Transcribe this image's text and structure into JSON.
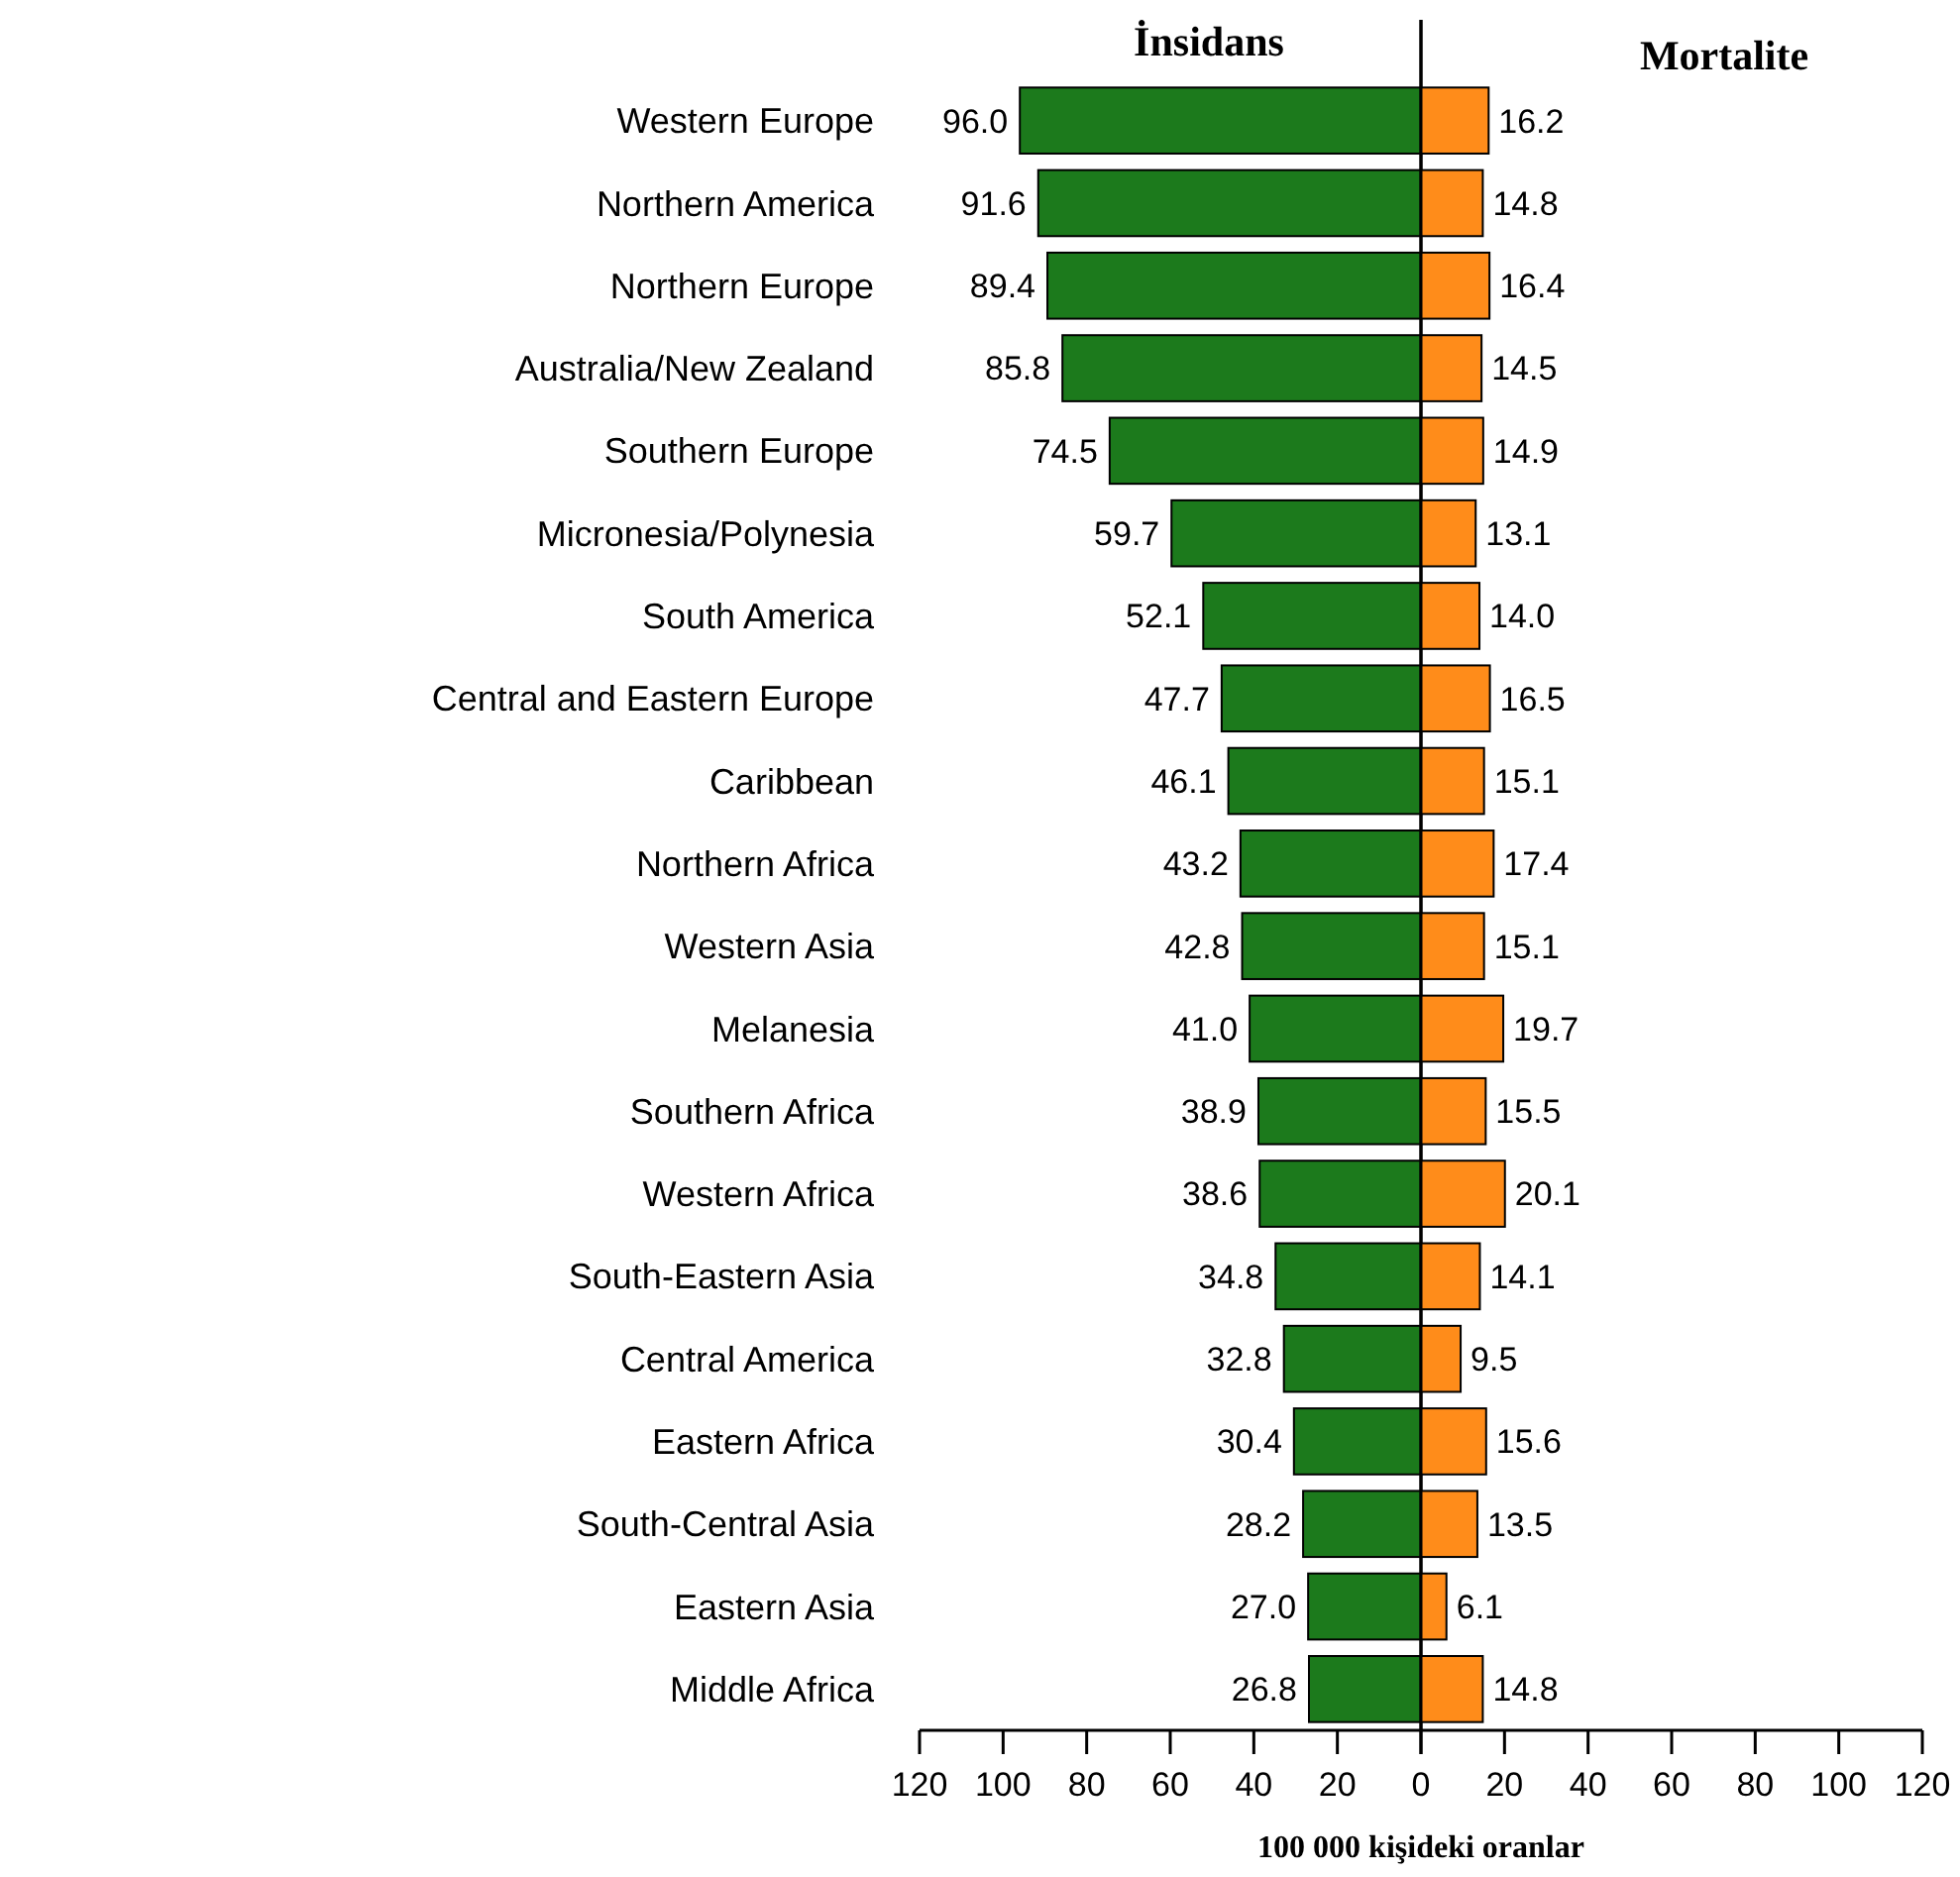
{
  "chart_data": [
    {
      "type": "bar",
      "orientation": "horizontal",
      "title": "İnsidans",
      "xlabel": "100 000 kişideki oranlar",
      "categories": [
        "Western Europe",
        "Northern America",
        "Northern Europe",
        "Australia/New Zealand",
        "Southern Europe",
        "Micronesia/Polynesia",
        "South America",
        "Central and Eastern Europe",
        "Caribbean",
        "Northern Africa",
        "Western Asia",
        "Melanesia",
        "Southern Africa",
        "Western Africa",
        "South-Eastern Asia",
        "Central America",
        "Eastern Africa",
        "South-Central Asia",
        "Eastern Asia",
        "Middle Africa"
      ],
      "color": "#1c7a1c",
      "values": [
        96.0,
        91.6,
        89.4,
        85.8,
        74.5,
        59.7,
        52.1,
        47.7,
        46.1,
        43.2,
        42.8,
        41.0,
        38.9,
        38.6,
        34.8,
        32.8,
        30.4,
        28.2,
        27.0,
        26.8
      ],
      "value_labels": [
        "96.0",
        "91.6",
        "89.4",
        "85.8",
        "74.5",
        "59.7",
        "52.1",
        "47.7",
        "46.1",
        "43.2",
        "42.8",
        "41.0",
        "38.9",
        "38.6",
        "34.8",
        "32.8",
        "30.4",
        "28.2",
        "27.0",
        "26.8"
      ],
      "xlim": [
        120,
        0
      ],
      "xticks": [
        120,
        100,
        80,
        60,
        40,
        20,
        0
      ]
    },
    {
      "type": "bar",
      "orientation": "horizontal",
      "title": "Mortalite",
      "tick_labels": "x",
      "categories": [
        "Western Europe",
        "Northern America",
        "Northern Europe",
        "Australia/New Zealand",
        "Southern Europe",
        "Micronesia/Polynesia",
        "South America",
        "Central and Eastern Europe",
        "Caribbean",
        "Northern Africa",
        "Western Asia",
        "Melanesia",
        "Southern Africa",
        "Western Africa",
        "South-Eastern Asia",
        "Central America",
        "Eastern Africa",
        "South-Central Asia",
        "Eastern Asia",
        "Middle Africa"
      ],
      "color": "#ff8c1a",
      "values": [
        16.2,
        14.8,
        16.4,
        14.5,
        14.9,
        13.1,
        14.0,
        16.5,
        15.1,
        17.4,
        15.1,
        19.7,
        15.5,
        20.1,
        14.1,
        9.5,
        15.6,
        13.5,
        6.1,
        14.8
      ],
      "value_labels": [
        "16.2",
        "14.8",
        "16.4",
        "14.5",
        "14.9",
        "13.1",
        "14.0",
        "16.5",
        "15.1",
        "17.4",
        "15.1",
        "19.7",
        "15.5",
        "20.1",
        "14.1",
        "9.5",
        "15.6",
        "13.5",
        "6.1",
        "14.8"
      ],
      "xlim": [
        0,
        120
      ],
      "xticks": [
        {
          "value": 0,
          "label": null
        },
        20,
        40,
        60,
        80,
        100,
        120
      ]
    }
  ]
}
